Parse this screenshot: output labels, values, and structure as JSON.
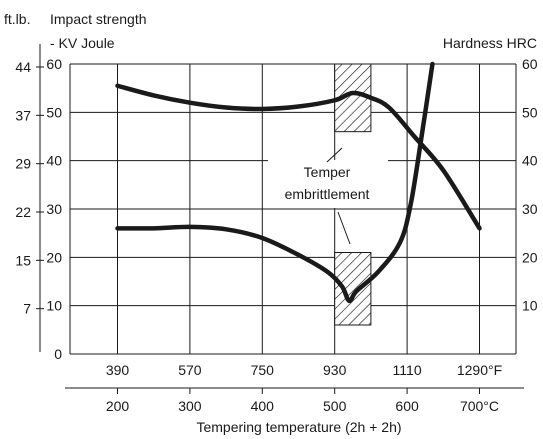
{
  "chart_data": {
    "type": "line",
    "title": "",
    "left_unit_label": "ft.lb.",
    "left_axis_title_line1": "Impact strength",
    "left_axis_title_line2": "- KV Joule",
    "right_axis_title": "Hardness HRC",
    "xlabel": "Tempering temperature (2h + 2h)",
    "x_axis_celsius": {
      "range": [
        200,
        700
      ],
      "ticks": [
        {
          "v": 200,
          "label": "200"
        },
        {
          "v": 300,
          "label": "300"
        },
        {
          "v": 400,
          "label": "400"
        },
        {
          "v": 500,
          "label": "500"
        },
        {
          "v": 600,
          "label": "600"
        },
        {
          "v": 700,
          "label": "700°C"
        }
      ]
    },
    "x_axis_fahrenheit": {
      "ticks": [
        {
          "c": 200,
          "label": "390"
        },
        {
          "c": 300,
          "label": "570"
        },
        {
          "c": 400,
          "label": "750"
        },
        {
          "c": 500,
          "label": "930"
        },
        {
          "c": 600,
          "label": "1110"
        },
        {
          "c": 700,
          "label": "1290°F"
        }
      ]
    },
    "y_axis_left": {
      "range": [
        0,
        60
      ],
      "ticks": [
        {
          "v": 0,
          "label": "0"
        },
        {
          "v": 10,
          "label": "10"
        },
        {
          "v": 20,
          "label": "20"
        },
        {
          "v": 30,
          "label": "30"
        },
        {
          "v": 40,
          "label": "40"
        },
        {
          "v": 50,
          "label": "50"
        },
        {
          "v": 60,
          "label": "60"
        }
      ]
    },
    "y_axis_ftlb": {
      "ticks": [
        {
          "v": 10,
          "label": "7"
        },
        {
          "v": 20,
          "label": "15"
        },
        {
          "v": 30,
          "label": "22"
        },
        {
          "v": 40,
          "label": "29"
        },
        {
          "v": 50,
          "label": "37"
        },
        {
          "v": 60,
          "label": "44"
        }
      ]
    },
    "y_axis_right": {
      "range": [
        0,
        60
      ],
      "ticks": [
        {
          "v": 10,
          "label": "10"
        },
        {
          "v": 20,
          "label": "20"
        },
        {
          "v": 30,
          "label": "30"
        },
        {
          "v": 40,
          "label": "40"
        },
        {
          "v": 50,
          "label": "50"
        },
        {
          "v": 60,
          "label": "60"
        }
      ]
    },
    "grid": true,
    "series": [
      {
        "points": [
          [
            200,
            55.5
          ],
          [
            250,
            53.5
          ],
          [
            300,
            52
          ],
          [
            350,
            51
          ],
          [
            400,
            50.7
          ],
          [
            450,
            51.2
          ],
          [
            500,
            52.5
          ],
          [
            525,
            54
          ],
          [
            550,
            53
          ],
          [
            575,
            51
          ],
          [
            610,
            45
          ],
          [
            650,
            38
          ],
          [
            700,
            26
          ]
        ]
      },
      {
        "points": [
          [
            200,
            26
          ],
          [
            250,
            26
          ],
          [
            300,
            26.3
          ],
          [
            350,
            25.8
          ],
          [
            400,
            24
          ],
          [
            450,
            20.5
          ],
          [
            490,
            17
          ],
          [
            510,
            14
          ],
          [
            520,
            11
          ],
          [
            530,
            13
          ],
          [
            560,
            17
          ],
          [
            590,
            23
          ],
          [
            605,
            31
          ],
          [
            620,
            45
          ],
          [
            635,
            60
          ]
        ]
      }
    ],
    "shaded_region": {
      "x_range": [
        500,
        550
      ],
      "upper_y": [
        46,
        60
      ],
      "lower_y": [
        6,
        21
      ]
    },
    "annotation": {
      "line1": "Temper",
      "line2": "embrittlement"
    }
  }
}
